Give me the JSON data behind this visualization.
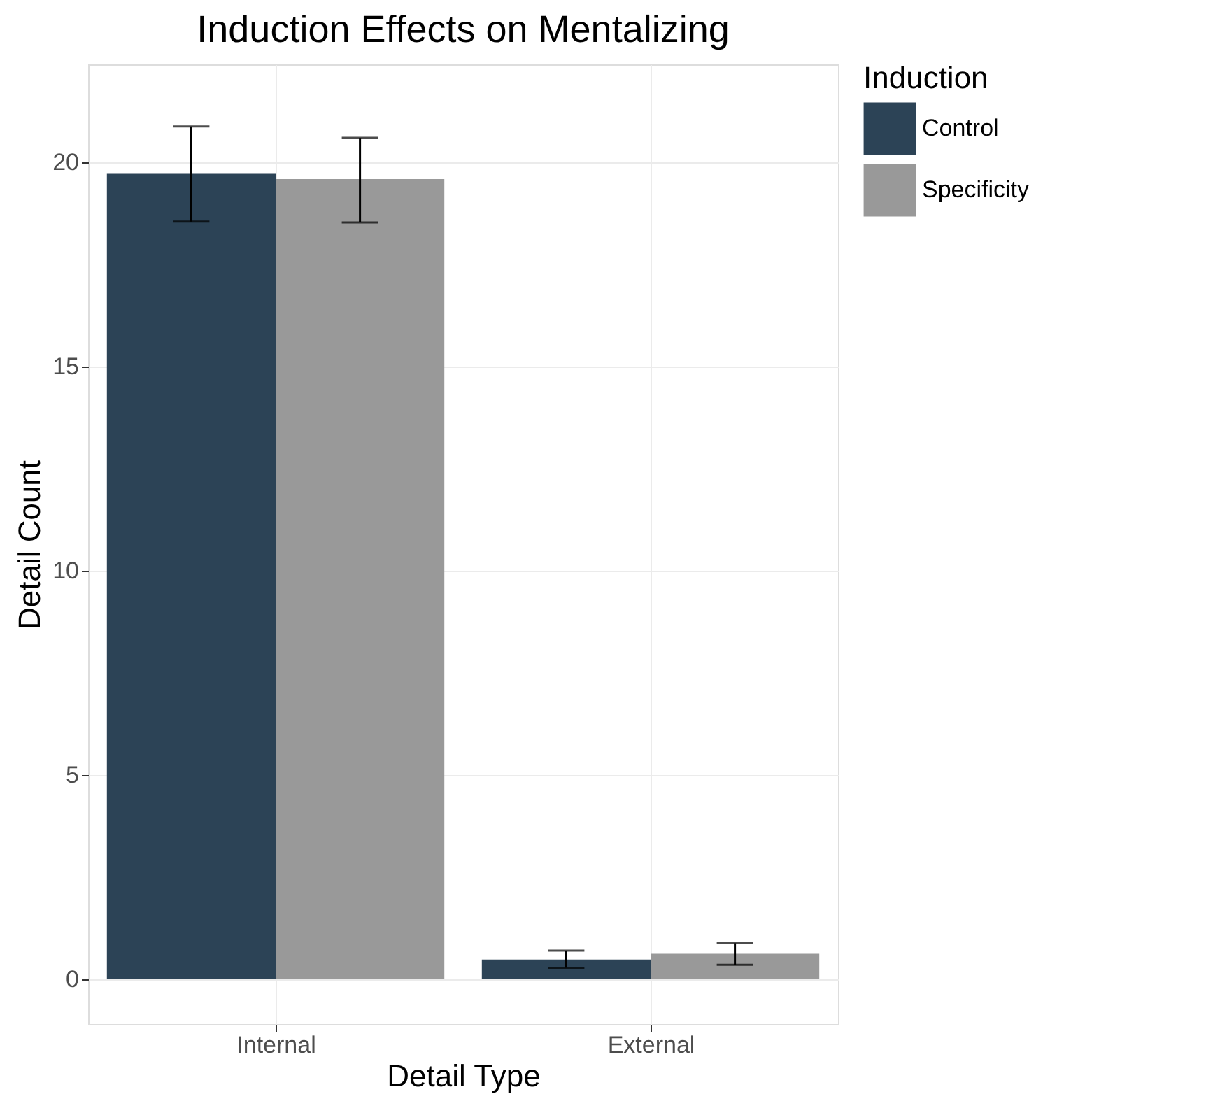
{
  "chart_data": {
    "type": "bar",
    "title": "Induction Effects on Mentalizing",
    "xlabel": "Detail Type",
    "ylabel": "Detail Count",
    "legend_title": "Induction",
    "categories": [
      "Internal",
      "External"
    ],
    "series": [
      {
        "name": "Control",
        "color": "#2c4356",
        "values": [
          19.72,
          0.48
        ],
        "errors": [
          [
            18.55,
            20.88
          ],
          [
            0.28,
            0.7
          ]
        ]
      },
      {
        "name": "Specificity",
        "color": "#999999",
        "values": [
          19.59,
          0.62
        ],
        "errors": [
          [
            18.53,
            20.6
          ],
          [
            0.35,
            0.88
          ]
        ]
      }
    ],
    "ylim": [
      -1.1,
      22.4
    ],
    "yticks": [
      0,
      5,
      10,
      15,
      20
    ],
    "grid": true,
    "legend": "right"
  }
}
